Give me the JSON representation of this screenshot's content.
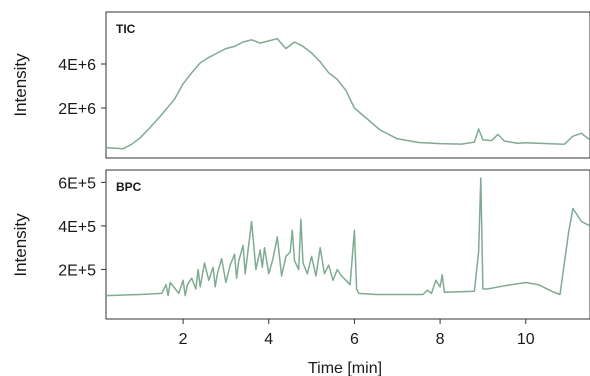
{
  "chart_data": [
    {
      "type": "line",
      "title": "TIC",
      "xlabel": "Time [min]",
      "ylabel": "Intensity",
      "xlim": [
        0.2,
        11.5
      ],
      "ylim": [
        0,
        6000000
      ],
      "yticks": [
        2000000,
        4000000
      ],
      "ytick_labels": [
        "2E+6",
        "4E+6"
      ],
      "color": "#7fab93",
      "grid": false,
      "series": [
        {
          "x": [
            0.2,
            0.6,
            0.8,
            1.0,
            1.2,
            1.5,
            1.8,
            2.0,
            2.2,
            2.4,
            2.6,
            2.8,
            3.0,
            3.2,
            3.4,
            3.6,
            3.8,
            4.0,
            4.2,
            4.4,
            4.6,
            4.8,
            5.0,
            5.2,
            5.4,
            5.6,
            5.8,
            6.0,
            6.3,
            6.6,
            7.0,
            7.5,
            8.0,
            8.5,
            8.8,
            8.9,
            9.0,
            9.2,
            9.35,
            9.5,
            9.8,
            10.0,
            10.5,
            10.9,
            11.1,
            11.3,
            11.5
          ],
          "y": [
            200000,
            150000,
            350000,
            650000,
            1050000,
            1700000,
            2400000,
            3100000,
            3600000,
            4050000,
            4300000,
            4500000,
            4700000,
            4800000,
            5000000,
            5100000,
            4950000,
            5050000,
            5150000,
            4700000,
            5000000,
            4800000,
            4500000,
            4100000,
            3600000,
            3300000,
            2800000,
            2000000,
            1500000,
            1000000,
            600000,
            430000,
            380000,
            360000,
            450000,
            1050000,
            550000,
            520000,
            800000,
            500000,
            400000,
            420000,
            380000,
            350000,
            720000,
            850000,
            550000
          ]
        }
      ]
    },
    {
      "type": "line",
      "title": "BPC",
      "xlabel": "Time [min]",
      "ylabel": "Intensity",
      "xlim": [
        0.2,
        11.5
      ],
      "ylim": [
        0,
        620000
      ],
      "yticks": [
        200000,
        400000,
        600000
      ],
      "ytick_labels": [
        "2E+5",
        "4E+5",
        "6E+5"
      ],
      "xticks": [
        2,
        4,
        6,
        8,
        10
      ],
      "xtick_labels": [
        "2",
        "4",
        "6",
        "8",
        "10"
      ],
      "color": "#7fab93",
      "grid": false,
      "series": [
        {
          "x": [
            0.2,
            1.0,
            1.5,
            1.6,
            1.65,
            1.7,
            1.9,
            2.0,
            2.05,
            2.1,
            2.2,
            2.3,
            2.35,
            2.4,
            2.5,
            2.6,
            2.7,
            2.75,
            2.8,
            2.9,
            3.0,
            3.1,
            3.2,
            3.25,
            3.3,
            3.4,
            3.45,
            3.5,
            3.6,
            3.7,
            3.8,
            3.85,
            3.9,
            4.0,
            4.1,
            4.2,
            4.3,
            4.4,
            4.5,
            4.55,
            4.6,
            4.7,
            4.75,
            4.8,
            4.9,
            5.0,
            5.1,
            5.2,
            5.3,
            5.4,
            5.5,
            5.6,
            5.7,
            5.8,
            5.9,
            6.0,
            6.05,
            6.1,
            6.5,
            7.0,
            7.6,
            7.7,
            7.8,
            7.9,
            8.0,
            8.05,
            8.1,
            8.8,
            8.9,
            8.95,
            9.0,
            9.1,
            9.5,
            10.0,
            10.3,
            10.6,
            10.8,
            11.0,
            11.1,
            11.2,
            11.3,
            11.5
          ],
          "y": [
            80000,
            85000,
            90000,
            130000,
            80000,
            140000,
            90000,
            150000,
            80000,
            130000,
            160000,
            110000,
            200000,
            120000,
            230000,
            150000,
            210000,
            120000,
            180000,
            250000,
            140000,
            220000,
            270000,
            160000,
            240000,
            310000,
            180000,
            260000,
            420000,
            200000,
            290000,
            210000,
            300000,
            180000,
            250000,
            350000,
            170000,
            260000,
            280000,
            380000,
            240000,
            200000,
            430000,
            230000,
            180000,
            260000,
            170000,
            300000,
            180000,
            220000,
            150000,
            200000,
            170000,
            150000,
            130000,
            380000,
            110000,
            90000,
            85000,
            85000,
            85000,
            105000,
            90000,
            150000,
            120000,
            175000,
            95000,
            100000,
            280000,
            620000,
            110000,
            110000,
            125000,
            140000,
            130000,
            100000,
            85000,
            370000,
            480000,
            450000,
            420000,
            400000
          ]
        }
      ]
    }
  ]
}
